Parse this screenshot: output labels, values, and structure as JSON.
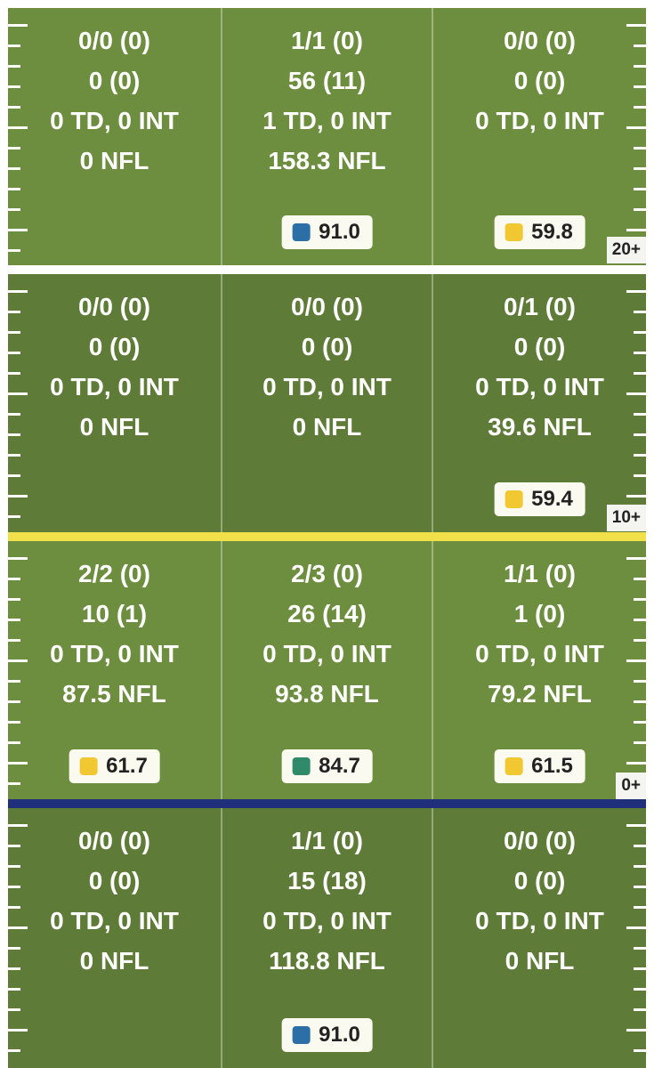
{
  "zones": [
    {
      "cells": [
        {
          "comp": "0/0 (0)",
          "yards": "0 (0)",
          "tdint": "0 TD, 0 INT",
          "rating": "0 NFL",
          "grade": null
        },
        {
          "comp": "1/1 (0)",
          "yards": "56 (11)",
          "tdint": "1 TD, 0 INT",
          "rating": "158.3 NFL",
          "grade": {
            "value": "91.0",
            "color": "#2b6fa6"
          }
        },
        {
          "comp": "0/0 (0)",
          "yards": "0 (0)",
          "tdint": "0 TD, 0 INT",
          "rating": "",
          "grade": {
            "value": "59.8",
            "color": "#f2c832"
          }
        }
      ],
      "yard_label": "20+"
    },
    {
      "cells": [
        {
          "comp": "0/0 (0)",
          "yards": "0 (0)",
          "tdint": "0 TD, 0 INT",
          "rating": "0 NFL",
          "grade": null
        },
        {
          "comp": "0/0 (0)",
          "yards": "0 (0)",
          "tdint": "0 TD, 0 INT",
          "rating": "0 NFL",
          "grade": null
        },
        {
          "comp": "0/1 (0)",
          "yards": "0 (0)",
          "tdint": "0 TD, 0 INT",
          "rating": "39.6 NFL",
          "grade": {
            "value": "59.4",
            "color": "#f2c832"
          }
        }
      ],
      "yard_label": "10+"
    },
    {
      "cells": [
        {
          "comp": "2/2 (0)",
          "yards": "10 (1)",
          "tdint": "0 TD, 0 INT",
          "rating": "87.5 NFL",
          "grade": {
            "value": "61.7",
            "color": "#f2c832"
          }
        },
        {
          "comp": "2/3 (0)",
          "yards": "26 (14)",
          "tdint": "0 TD, 0 INT",
          "rating": "93.8 NFL",
          "grade": {
            "value": "84.7",
            "color": "#2f8a6a"
          }
        },
        {
          "comp": "1/1 (0)",
          "yards": "1 (0)",
          "tdint": "0 TD, 0 INT",
          "rating": "79.2 NFL",
          "grade": {
            "value": "61.5",
            "color": "#f2c832"
          }
        }
      ],
      "yard_label": "0+"
    },
    {
      "cells": [
        {
          "comp": "0/0 (0)",
          "yards": "0 (0)",
          "tdint": "0 TD, 0 INT",
          "rating": "0 NFL",
          "grade": null
        },
        {
          "comp": "1/1 (0)",
          "yards": "15 (18)",
          "tdint": "0 TD, 0 INT",
          "rating": "118.8 NFL",
          "grade": {
            "value": "91.0",
            "color": "#2b6fa6"
          }
        },
        {
          "comp": "0/0 (0)",
          "yards": "0 (0)",
          "tdint": "0 TD, 0 INT",
          "rating": "0 NFL",
          "grade": null
        }
      ],
      "yard_label": ""
    }
  ],
  "colors": {
    "first_down_line": "#f2e04a",
    "line_of_scrimmage": "#1f2f7a",
    "zone_light": "#6d8d3f",
    "zone_dark": "#5f7b38"
  }
}
